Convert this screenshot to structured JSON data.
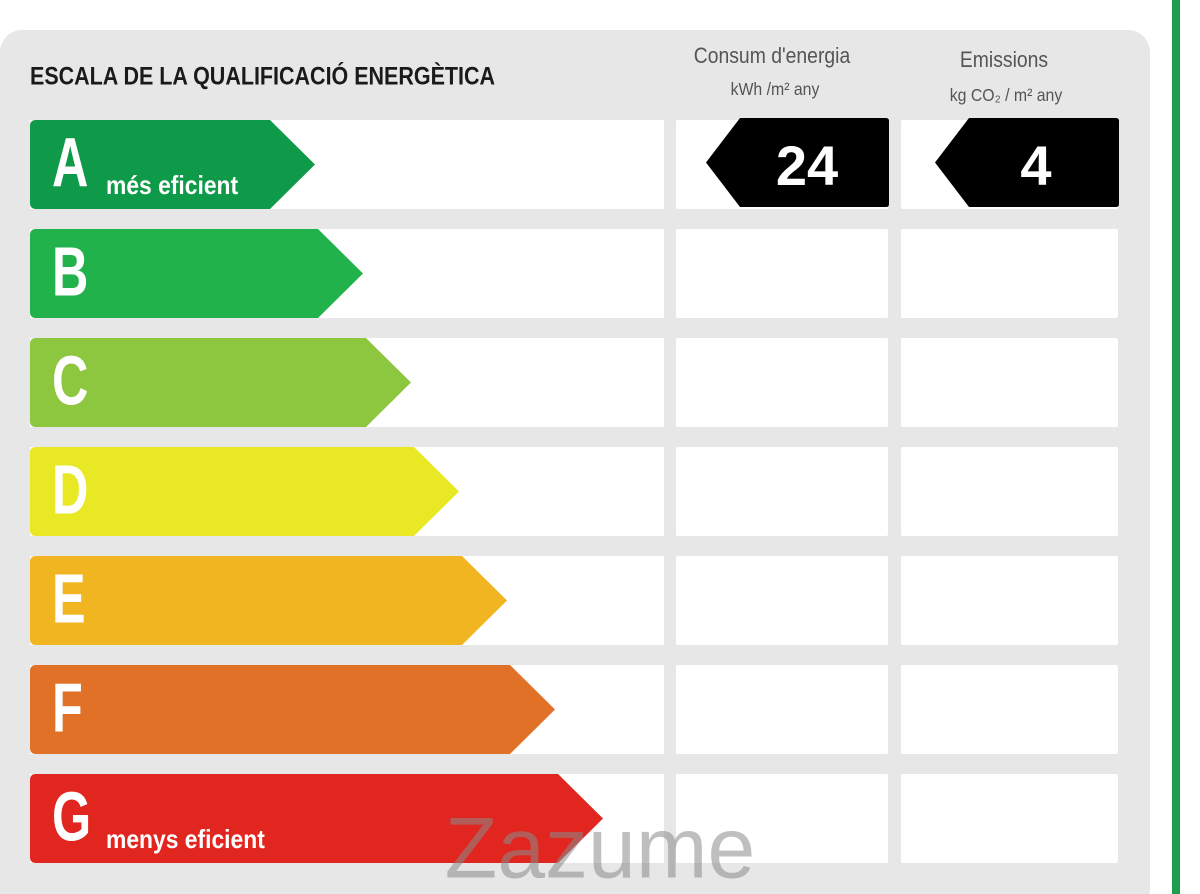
{
  "title": "ESCALA DE LA QUALIFICACIÓ ENERGÈTICA",
  "columns": [
    {
      "title": "Consum d'energia",
      "unit": "kWh /m² any"
    },
    {
      "title": "Emissions",
      "unit": "kg CO₂ / m² any"
    }
  ],
  "grades": [
    {
      "letter": "A",
      "note": "més eficient",
      "color": "#0f9a4a",
      "consumption": 24,
      "emissions": 4
    },
    {
      "letter": "B",
      "color": "#22b24c"
    },
    {
      "letter": "C",
      "color": "#8dc63f"
    },
    {
      "letter": "D",
      "color": "#e9e824"
    },
    {
      "letter": "E",
      "color": "#f0b521"
    },
    {
      "letter": "F",
      "color": "#e07126"
    },
    {
      "letter": "G",
      "note": "menys eficient",
      "color": "#e1261f"
    }
  ],
  "watermark": "Zazume"
}
